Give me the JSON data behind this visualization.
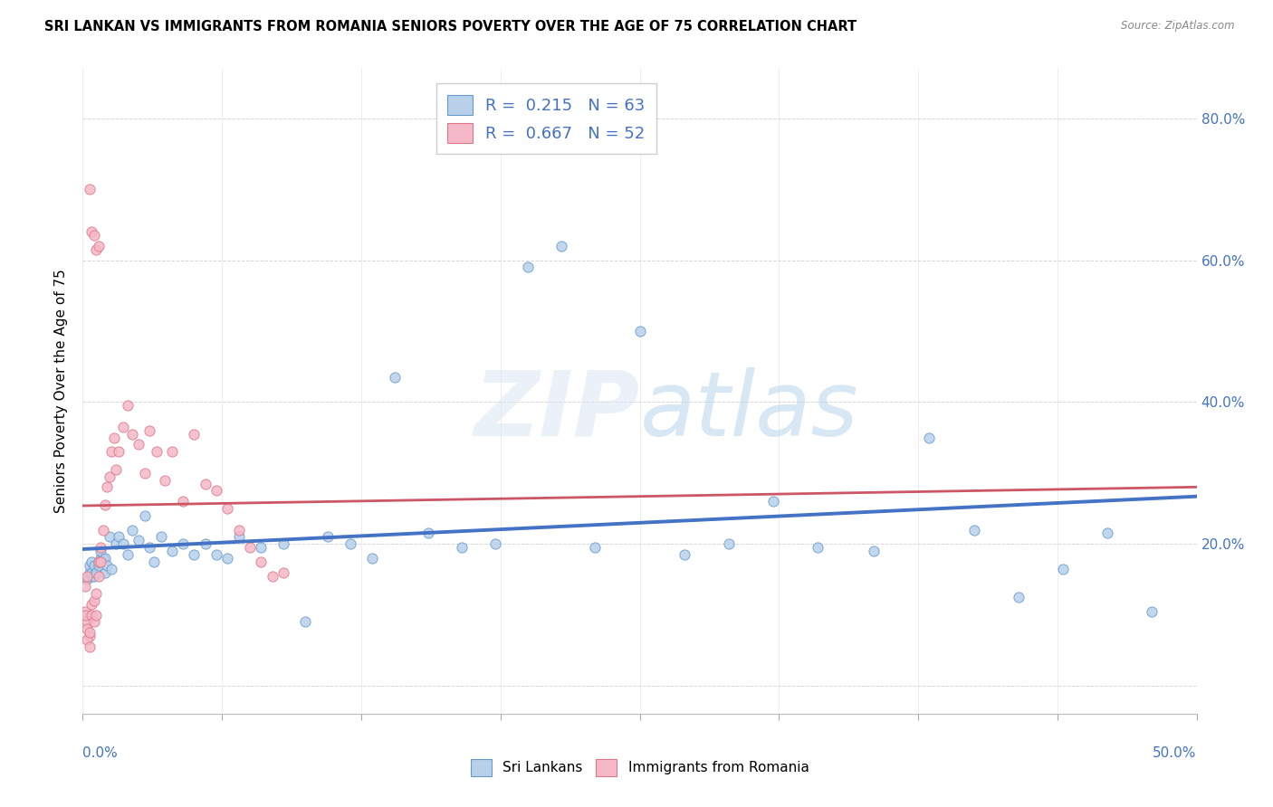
{
  "title": "SRI LANKAN VS IMMIGRANTS FROM ROMANIA SENIORS POVERTY OVER THE AGE OF 75 CORRELATION CHART",
  "source": "Source: ZipAtlas.com",
  "ylabel": "Seniors Poverty Over the Age of 75",
  "xlim": [
    0.0,
    0.5
  ],
  "ylim": [
    -0.04,
    0.87
  ],
  "yticks": [
    0.0,
    0.2,
    0.4,
    0.6,
    0.8
  ],
  "ytick_labels": [
    "",
    "20.0%",
    "40.0%",
    "60.0%",
    "80.0%"
  ],
  "xtick_positions": [
    0.0,
    0.0625,
    0.125,
    0.1875,
    0.25,
    0.3125,
    0.375,
    0.4375,
    0.5
  ],
  "blue_R": "0.215",
  "blue_N": "63",
  "pink_R": "0.667",
  "pink_N": "52",
  "blue_fill": "#b8d0ea",
  "pink_fill": "#f5b8c8",
  "blue_edge": "#6699cc",
  "pink_edge": "#dd7788",
  "blue_line": "#4472c4",
  "pink_line": "#cc5566",
  "blue_label": "Sri Lankans",
  "pink_label": "Immigrants from Romania",
  "blue_scatter_x": [
    0.002,
    0.003,
    0.004,
    0.005,
    0.003,
    0.004,
    0.005,
    0.006,
    0.004,
    0.005,
    0.007,
    0.008,
    0.006,
    0.007,
    0.009,
    0.01,
    0.008,
    0.01,
    0.012,
    0.011,
    0.015,
    0.013,
    0.016,
    0.018,
    0.02,
    0.022,
    0.025,
    0.028,
    0.03,
    0.032,
    0.035,
    0.04,
    0.045,
    0.05,
    0.055,
    0.06,
    0.065,
    0.07,
    0.08,
    0.09,
    0.1,
    0.11,
    0.12,
    0.13,
    0.14,
    0.155,
    0.17,
    0.185,
    0.2,
    0.215,
    0.23,
    0.25,
    0.27,
    0.29,
    0.31,
    0.33,
    0.355,
    0.38,
    0.4,
    0.42,
    0.44,
    0.46,
    0.48
  ],
  "blue_scatter_y": [
    0.15,
    0.16,
    0.155,
    0.165,
    0.17,
    0.16,
    0.155,
    0.165,
    0.175,
    0.17,
    0.175,
    0.18,
    0.16,
    0.17,
    0.18,
    0.16,
    0.19,
    0.18,
    0.21,
    0.17,
    0.2,
    0.165,
    0.21,
    0.2,
    0.185,
    0.22,
    0.205,
    0.24,
    0.195,
    0.175,
    0.21,
    0.19,
    0.2,
    0.185,
    0.2,
    0.185,
    0.18,
    0.21,
    0.195,
    0.2,
    0.09,
    0.21,
    0.2,
    0.18,
    0.435,
    0.215,
    0.195,
    0.2,
    0.59,
    0.62,
    0.195,
    0.5,
    0.185,
    0.2,
    0.26,
    0.195,
    0.19,
    0.35,
    0.22,
    0.125,
    0.165,
    0.215,
    0.105
  ],
  "pink_scatter_x": [
    0.001,
    0.002,
    0.001,
    0.002,
    0.001,
    0.002,
    0.003,
    0.002,
    0.003,
    0.003,
    0.004,
    0.004,
    0.005,
    0.005,
    0.006,
    0.006,
    0.007,
    0.007,
    0.008,
    0.008,
    0.009,
    0.01,
    0.011,
    0.012,
    0.013,
    0.014,
    0.015,
    0.016,
    0.018,
    0.02,
    0.022,
    0.025,
    0.028,
    0.03,
    0.033,
    0.037,
    0.04,
    0.045,
    0.05,
    0.055,
    0.06,
    0.065,
    0.07,
    0.075,
    0.08,
    0.085,
    0.09,
    0.003,
    0.004,
    0.005,
    0.006,
    0.007
  ],
  "pink_scatter_y": [
    0.14,
    0.155,
    0.105,
    0.09,
    0.1,
    0.08,
    0.07,
    0.065,
    0.055,
    0.075,
    0.1,
    0.115,
    0.12,
    0.09,
    0.13,
    0.1,
    0.175,
    0.155,
    0.195,
    0.175,
    0.22,
    0.255,
    0.28,
    0.295,
    0.33,
    0.35,
    0.305,
    0.33,
    0.365,
    0.395,
    0.355,
    0.34,
    0.3,
    0.36,
    0.33,
    0.29,
    0.33,
    0.26,
    0.355,
    0.285,
    0.275,
    0.25,
    0.22,
    0.195,
    0.175,
    0.155,
    0.16,
    0.7,
    0.64,
    0.635,
    0.615,
    0.62
  ]
}
